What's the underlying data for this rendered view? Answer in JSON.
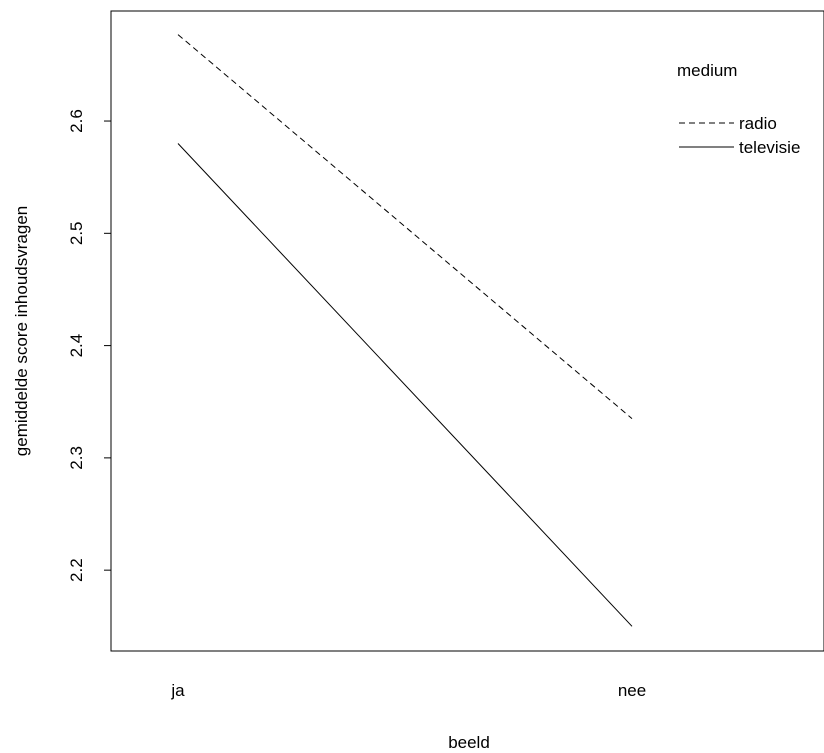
{
  "chart_data": {
    "type": "line",
    "xlabel": "beeld",
    "ylabel": "gemiddelde score inhoudsvragen",
    "categories": [
      "ja",
      "nee"
    ],
    "series": [
      {
        "name": "radio",
        "values": [
          2.677,
          2.335
        ],
        "line_style": "dashed"
      },
      {
        "name": "televisie",
        "values": [
          2.58,
          2.15
        ],
        "line_style": "solid"
      }
    ],
    "y_ticks": [
      "2.2",
      "2.3",
      "2.4",
      "2.5",
      "2.6"
    ],
    "ylim": [
      2.128,
      2.698
    ],
    "grid": false,
    "legend": {
      "title": "medium",
      "placement": "top-right"
    }
  },
  "colors": {
    "line": "#000000",
    "background": "#ffffff"
  }
}
